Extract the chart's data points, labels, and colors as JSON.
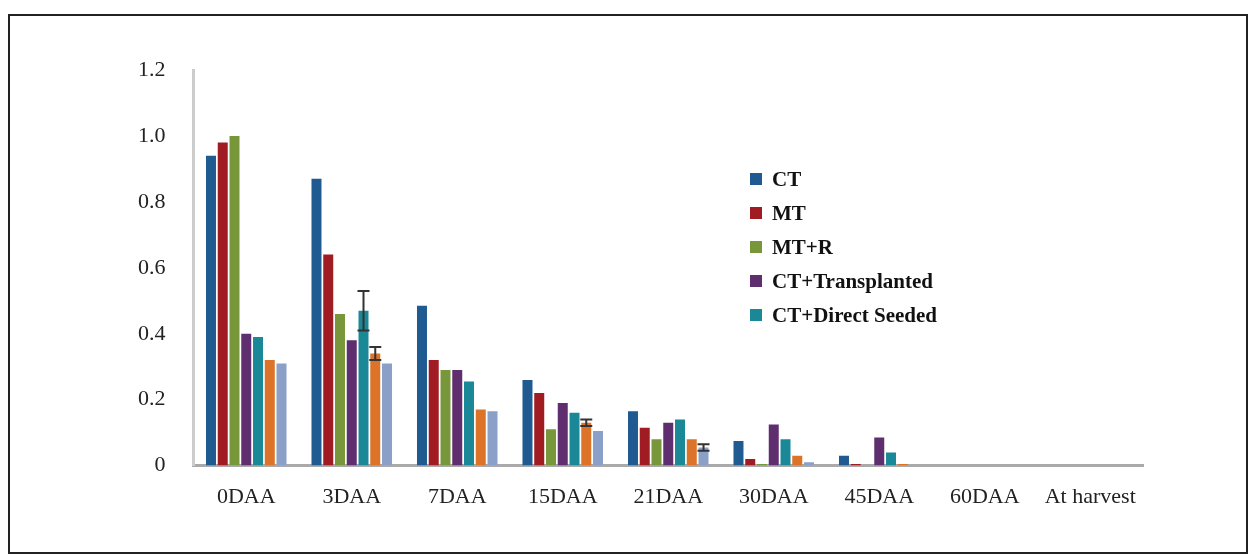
{
  "chart_data": {
    "type": "bar",
    "categories": [
      "0DAA",
      "3DAA",
      "7DAA",
      "15DAA",
      "21DAA",
      "30DAA",
      "45DAA",
      "60DAA",
      "At harvest"
    ],
    "series": [
      {
        "name": "CT",
        "color": "#1f5a91",
        "values": [
          0.94,
          0.87,
          0.485,
          0.26,
          0.165,
          0.075,
          0.03,
          0,
          0
        ]
      },
      {
        "name": "MT",
        "color": "#a01c22",
        "values": [
          0.98,
          0.64,
          0.32,
          0.22,
          0.115,
          0.02,
          0.005,
          0,
          0
        ]
      },
      {
        "name": "MT+R",
        "color": "#77973a",
        "values": [
          1.0,
          0.46,
          0.29,
          0.11,
          0.08,
          0.005,
          0,
          0,
          0
        ]
      },
      {
        "name": "CT+Transplanted",
        "color": "#5e2e6e",
        "values": [
          0.4,
          0.38,
          0.29,
          0.19,
          0.13,
          0.125,
          0.085,
          0,
          0
        ]
      },
      {
        "name": "CT+Direct Seeded",
        "color": "#1b8898",
        "values": [
          0.39,
          0.47,
          0.255,
          0.16,
          0.14,
          0.08,
          0.04,
          0,
          0
        ],
        "errors": [
          null,
          0.06,
          null,
          null,
          null,
          null,
          null,
          null,
          null
        ]
      },
      {
        "color": "#dc7328",
        "values": [
          0.32,
          0.34,
          0.17,
          0.13,
          0.08,
          0.03,
          0.005,
          0,
          0
        ],
        "errors": [
          null,
          0.02,
          null,
          0.01,
          null,
          null,
          null,
          null,
          null
        ]
      },
      {
        "color": "#8aa0c8",
        "values": [
          0.31,
          0.31,
          0.165,
          0.105,
          0.055,
          0.01,
          0,
          0,
          0
        ],
        "errors": [
          null,
          null,
          null,
          null,
          0.01,
          null,
          null,
          null,
          null
        ]
      }
    ],
    "ylim": [
      0,
      1.2
    ],
    "yticks": [
      0,
      0.2,
      0.4,
      0.6,
      0.8,
      {
        "value": 1,
        "label": "1.0"
      },
      1.2
    ],
    "grid": false,
    "legend": "top right"
  }
}
